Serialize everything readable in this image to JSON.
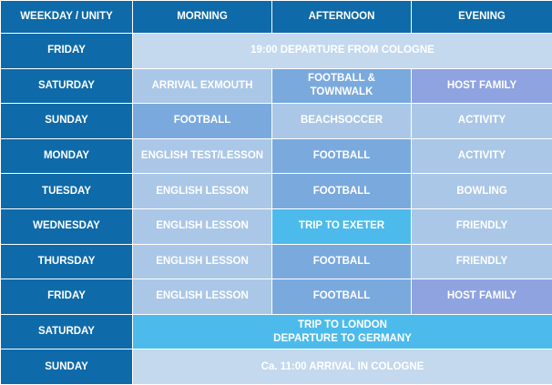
{
  "header": {
    "day": "WEEKDAY / UNITY",
    "morning": "MORNING",
    "afternoon": "AFTERNOON",
    "evening": "EVENING"
  },
  "rows": [
    {
      "day": "FRIDAY",
      "all": "19:00 DEPARTURE FROM COLOGNE"
    },
    {
      "day": "SATURDAY",
      "morning": "ARRIVAL EXMOUTH",
      "afternoon": "FOOTBALL &\nTOWNWALK",
      "evening": "HOST FAMILY"
    },
    {
      "day": "SUNDAY",
      "morning": "FOOTBALL",
      "afternoon": "BEACHSOCCER",
      "evening": "ACTIVITY"
    },
    {
      "day": "MONDAY",
      "morning": "ENGLISH TEST/LESSON",
      "afternoon": "FOOTBALL",
      "evening": "ACTIVITY"
    },
    {
      "day": "TUESDAY",
      "morning": "ENGLISH LESSON",
      "afternoon": "FOOTBALL",
      "evening": "BOWLING"
    },
    {
      "day": "WEDNESDAY",
      "morning": "ENGLISH LESSON",
      "afternoon": "TRIP TO EXETER",
      "evening": "FRIENDLY"
    },
    {
      "day": "THURSDAY",
      "morning": "ENGLISH LESSON",
      "afternoon": "FOOTBALL",
      "evening": "FRIENDLY"
    },
    {
      "day": "FRIDAY",
      "morning": "ENGLISH LESSON",
      "afternoon": "FOOTBALL",
      "evening": "HOST FAMILY"
    },
    {
      "day": "SATURDAY",
      "all": "TRIP TO LONDON\nDEPARTURE TO GERMANY"
    },
    {
      "day": "SUNDAY",
      "all": "Ca. 11:00 ARRIVAL IN COLOGNE"
    }
  ],
  "colors": {
    "header": "#0e6aa8",
    "day": "#0f6aa9",
    "pale": "#c4d8ee",
    "light": "#abc7e7",
    "mid": "#7aa9de",
    "sky": "#4cbbec",
    "purple": "#8ea3e0",
    "text": "#ffffff"
  }
}
